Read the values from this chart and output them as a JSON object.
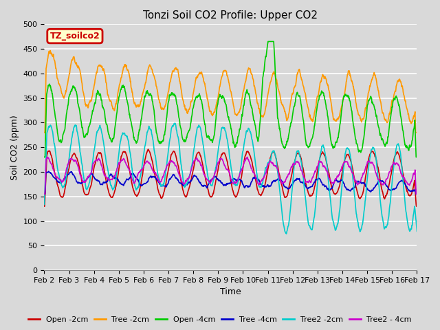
{
  "title": "Tonzi Soil CO2 Profile: Upper CO2",
  "xlabel": "Time",
  "ylabel": "Soil CO2 (ppm)",
  "ylim": [
    0,
    500
  ],
  "yticks": [
    0,
    50,
    100,
    150,
    200,
    250,
    300,
    350,
    400,
    450,
    500
  ],
  "x_labels": [
    "Feb 2",
    "Feb 3",
    "Feb 4",
    "Feb 5",
    "Feb 6",
    "Feb 7",
    "Feb 8",
    "Feb 9",
    "Feb 10",
    "Feb 11",
    "Feb 12",
    "Feb 13",
    "Feb 14",
    "Feb 15",
    "Feb 16",
    "Feb 17"
  ],
  "series_colors": {
    "Open -2cm": "#cc0000",
    "Tree -2cm": "#ff9900",
    "Open -4cm": "#00cc00",
    "Tree -4cm": "#0000cc",
    "Tree2 -2cm": "#00cccc",
    "Tree2 - 4cm": "#cc00cc"
  },
  "legend_label": "TZ_soilco2",
  "legend_bg": "#ffffcc",
  "legend_border": "#cc0000",
  "background_color": "#d9d9d9",
  "grid_color": "#ffffff",
  "n_points": 1440,
  "title_fontsize": 11,
  "label_fontsize": 9,
  "tick_fontsize": 8
}
